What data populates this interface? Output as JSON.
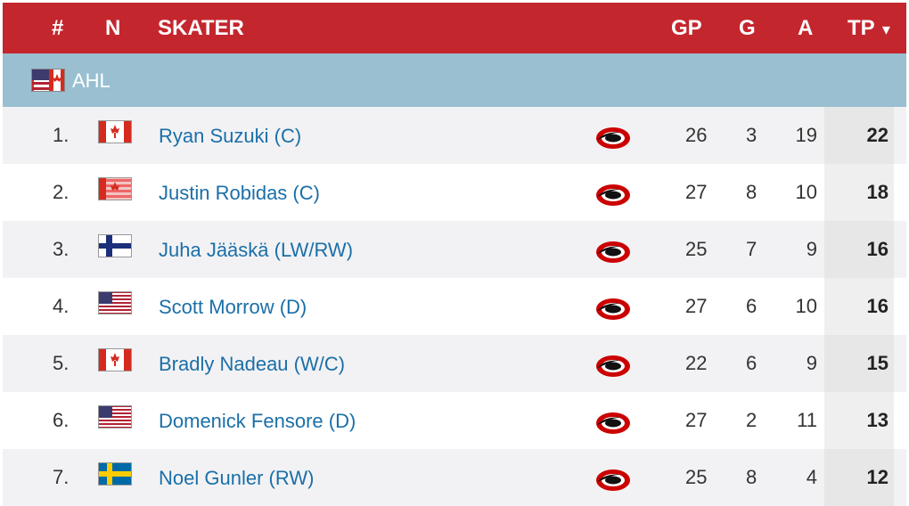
{
  "header": {
    "rank": "#",
    "nation": "N",
    "skater": "SKATER",
    "gp": "GP",
    "g": "G",
    "a": "A",
    "tp": "TP",
    "sort_indicator": "▾"
  },
  "league": {
    "name": "AHL",
    "flag": "usa-canada-flag-icon"
  },
  "rows": [
    {
      "rank": "1.",
      "flag": "canada-flag-icon",
      "name": "Ryan Suzuki (C)",
      "team_icon": "carolina-hurricanes-logo-icon",
      "gp": "26",
      "g": "3",
      "a": "19",
      "tp": "22"
    },
    {
      "rank": "2.",
      "flag": "canada-usa-flag-icon",
      "name": "Justin Robidas (C)",
      "team_icon": "carolina-hurricanes-logo-icon",
      "gp": "27",
      "g": "8",
      "a": "10",
      "tp": "18"
    },
    {
      "rank": "3.",
      "flag": "finland-flag-icon",
      "name": "Juha Jääskä (LW/RW)",
      "team_icon": "carolina-hurricanes-logo-icon",
      "gp": "25",
      "g": "7",
      "a": "9",
      "tp": "16"
    },
    {
      "rank": "4.",
      "flag": "usa-flag-icon",
      "name": "Scott Morrow (D)",
      "team_icon": "carolina-hurricanes-logo-icon",
      "gp": "27",
      "g": "6",
      "a": "10",
      "tp": "16"
    },
    {
      "rank": "5.",
      "flag": "canada-flag-icon",
      "name": "Bradly Nadeau (W/C)",
      "team_icon": "carolina-hurricanes-logo-icon",
      "gp": "22",
      "g": "6",
      "a": "9",
      "tp": "15"
    },
    {
      "rank": "6.",
      "flag": "usa-flag-icon",
      "name": "Domenick Fensore (D)",
      "team_icon": "carolina-hurricanes-logo-icon",
      "gp": "27",
      "g": "2",
      "a": "11",
      "tp": "13"
    },
    {
      "rank": "7.",
      "flag": "sweden-flag-icon",
      "name": "Noel Gunler (RW)",
      "team_icon": "carolina-hurricanes-logo-icon",
      "gp": "25",
      "g": "8",
      "a": "4",
      "tp": "12"
    }
  ],
  "colors": {
    "header_bg": "#c4262e",
    "league_bg": "#99bfd1",
    "link": "#1b6fa8"
  }
}
